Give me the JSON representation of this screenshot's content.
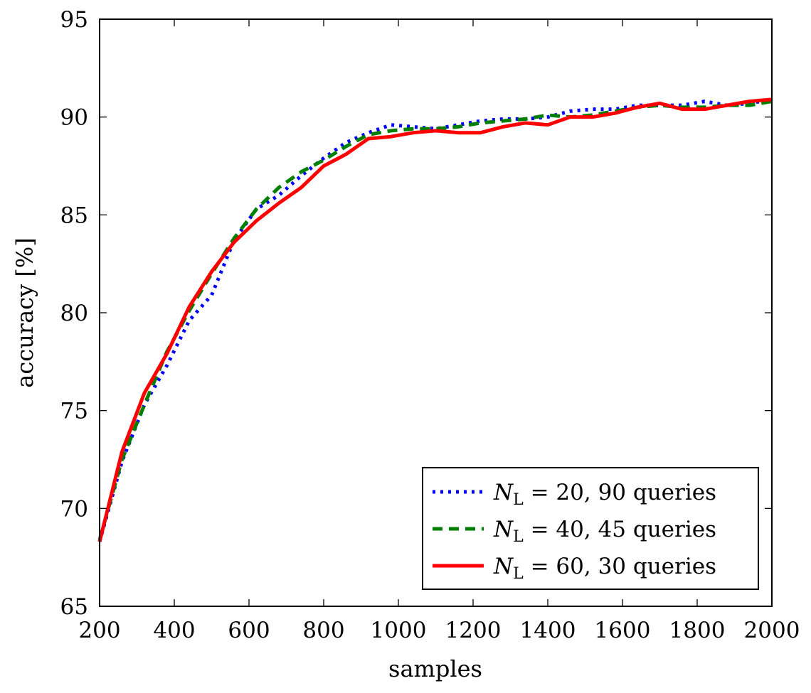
{
  "chart_data": {
    "type": "line",
    "title": "",
    "xlabel": "samples",
    "ylabel": "accuracy [%]",
    "xlim": [
      200,
      2000
    ],
    "ylim": [
      65,
      95
    ],
    "xticks": [
      200,
      400,
      600,
      800,
      1000,
      1200,
      1400,
      1600,
      1800,
      2000
    ],
    "yticks": [
      65,
      70,
      75,
      80,
      85,
      90,
      95
    ],
    "grid": false,
    "legend_position": "bottom-right",
    "x": [
      200,
      260,
      320,
      380,
      440,
      500,
      560,
      620,
      680,
      740,
      800,
      860,
      920,
      980,
      1040,
      1100,
      1160,
      1220,
      1280,
      1340,
      1400,
      1460,
      1520,
      1580,
      1640,
      1700,
      1760,
      1820,
      1880,
      1940,
      2000
    ],
    "series": [
      {
        "name_math": "N",
        "name_sub": "L",
        "name_rest": " = 20, 90 queries",
        "color": "#0000ff",
        "style": "dotted",
        "values": [
          68.3,
          72.4,
          75.3,
          77.3,
          79.6,
          80.9,
          83.7,
          85.3,
          86.0,
          87.0,
          87.9,
          88.7,
          89.2,
          89.6,
          89.5,
          89.4,
          89.6,
          89.8,
          89.9,
          89.9,
          90.0,
          90.3,
          90.4,
          90.4,
          90.6,
          90.6,
          90.6,
          90.8,
          90.6,
          90.7,
          90.9
        ]
      },
      {
        "name_math": "N",
        "name_sub": "L",
        "name_rest": " = 40, 45 queries",
        "color": "#007f00",
        "style": "dashed",
        "values": [
          68.4,
          72.5,
          75.3,
          78.0,
          80.1,
          82.0,
          83.8,
          85.3,
          86.4,
          87.2,
          87.8,
          88.5,
          89.1,
          89.3,
          89.4,
          89.4,
          89.5,
          89.7,
          89.8,
          89.9,
          90.1,
          90.0,
          90.1,
          90.3,
          90.5,
          90.6,
          90.5,
          90.5,
          90.6,
          90.6,
          90.8
        ]
      },
      {
        "name_math": "N",
        "name_sub": "L",
        "name_rest": " = 60, 30 queries",
        "color": "#ff0000",
        "style": "solid",
        "values": [
          68.3,
          72.9,
          75.9,
          77.9,
          80.3,
          82.1,
          83.6,
          84.7,
          85.6,
          86.4,
          87.5,
          88.1,
          88.9,
          89.0,
          89.2,
          89.3,
          89.2,
          89.2,
          89.5,
          89.7,
          89.6,
          90.0,
          90.0,
          90.2,
          90.5,
          90.7,
          90.4,
          90.4,
          90.6,
          90.8,
          90.9
        ]
      }
    ]
  }
}
